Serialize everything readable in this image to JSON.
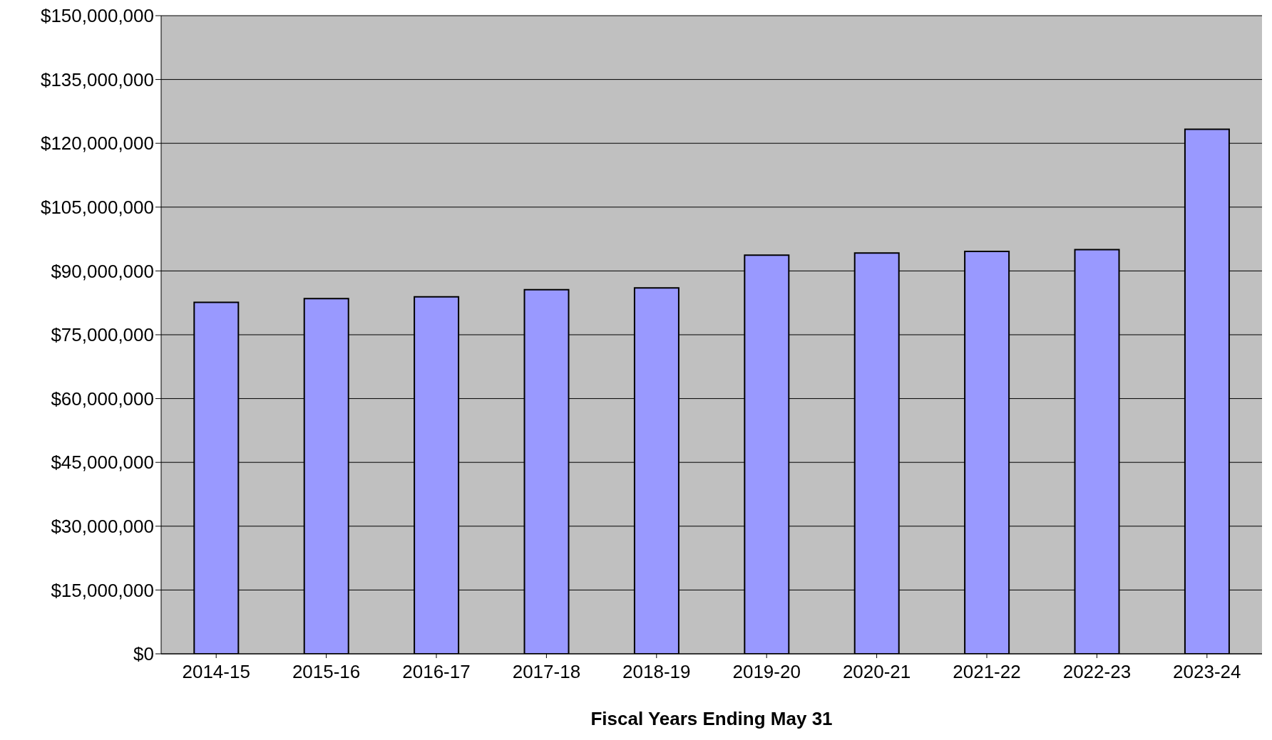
{
  "chart_data": {
    "type": "bar",
    "xlabel": "Fiscal Years Ending May 31",
    "categories": [
      "2014-15",
      "2015-16",
      "2016-17",
      "2017-18",
      "2018-19",
      "2019-20",
      "2020-21",
      "2021-22",
      "2022-23",
      "2023-24"
    ],
    "values": [
      82600000.0,
      83500000.0,
      83900000.0,
      85600000.0,
      86000000.0,
      93700000.0,
      94200000.0,
      94600000.0,
      95000000.0,
      123300000.0
    ],
    "color": "#9999ff",
    "ylim": [
      0,
      150000000
    ],
    "yticks": [
      {
        "value": 0,
        "label": "$0"
      },
      {
        "value": 15000000,
        "label": "$15,000,000"
      },
      {
        "value": 30000000,
        "label": "$30,000,000"
      },
      {
        "value": 45000000,
        "label": "$45,000,000"
      },
      {
        "value": 60000000,
        "label": "$60,000,000"
      },
      {
        "value": 75000000,
        "label": "$75,000,000"
      },
      {
        "value": 90000000,
        "label": "$90,000,000"
      },
      {
        "value": 105000000,
        "label": "$105,000,000"
      },
      {
        "value": 120000000,
        "label": "$120,000,000"
      },
      {
        "value": 135000000,
        "label": "$135,000,000"
      },
      {
        "value": 150000000,
        "label": "$150,000,000"
      }
    ],
    "grid": "y"
  }
}
